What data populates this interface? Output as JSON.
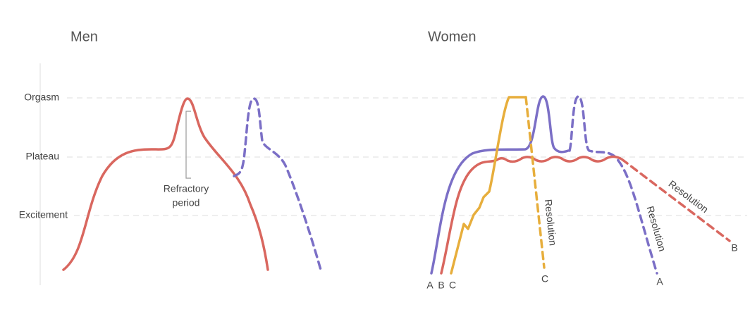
{
  "panels": [
    {
      "title": "Men"
    },
    {
      "title": "Women"
    }
  ],
  "levels": [
    "Orgasm",
    "Plateau",
    "Excitement"
  ],
  "men": {
    "annotation": [
      "Refractory",
      "period"
    ]
  },
  "women": {
    "start_labels": [
      "A",
      "B",
      "C"
    ],
    "curves": [
      {
        "end": "C",
        "resolution": "Resolution"
      },
      {
        "end": "A",
        "resolution": "Resolution"
      },
      {
        "end": "B",
        "resolution": "Resolution"
      }
    ]
  }
}
